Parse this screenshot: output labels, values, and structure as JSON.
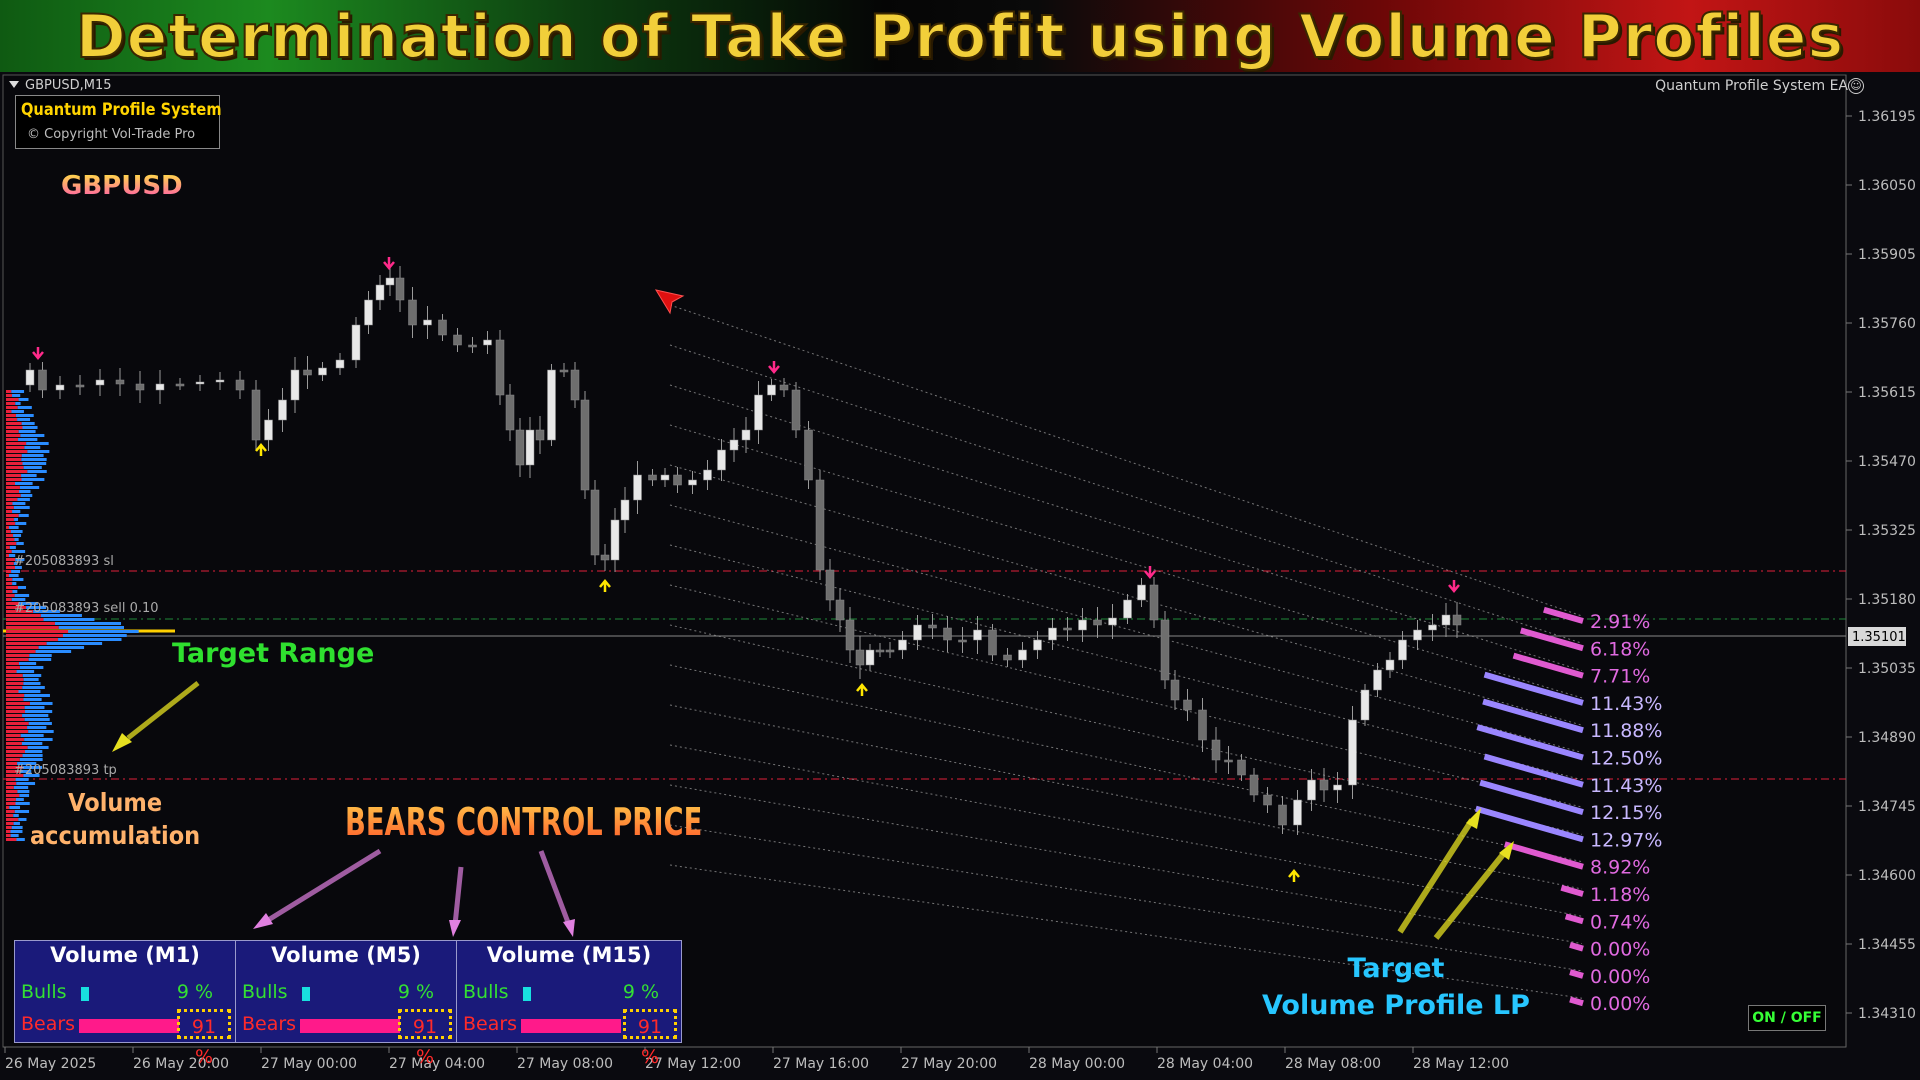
{
  "header": {
    "title": "Determination of Take Profit using Volume Profiles"
  },
  "chart_window": {
    "symbol_timeframe": "GBPUSD,M15",
    "ea_name": "Quantum Profile System EA",
    "ea_icon": "smiley-icon",
    "brand_title": "Quantum Profile System",
    "brand_copyright": "© Copyright Vol-Trade Pro",
    "symbol_big": "GBPUSD",
    "price_axis": [
      "1.36195",
      "1.36050",
      "1.35905",
      "1.35760",
      "1.35615",
      "1.35470",
      "1.35325",
      "1.35180",
      "1.35035",
      "1.34890",
      "1.34745",
      "1.34600",
      "1.34455",
      "1.34310"
    ],
    "current_price": "1.35101",
    "time_axis": [
      "26 May 2025",
      "26 May 20:00",
      "27 May 00:00",
      "27 May 04:00",
      "27 May 08:00",
      "27 May 12:00",
      "27 May 16:00",
      "27 May 20:00",
      "28 May 00:00",
      "28 May 04:00",
      "28 May 08:00",
      "28 May 12:00"
    ],
    "orders": {
      "sl": "#205083893 sl",
      "sell": "#205083893 sell 0.10",
      "tp": "#205083893 tp"
    },
    "colors": {
      "bear_line": "#e0203a",
      "sell_line": "#1f8a3a",
      "bull_arrow": "#ffe600",
      "bear_arrow": "#ff2a8a",
      "profile_bear": "#e8203a",
      "profile_bull": "#2a8cff"
    }
  },
  "annotations": {
    "target_range": "Target Range",
    "volume_accumulation_1": "Volume",
    "volume_accumulation_2": "accumulation",
    "bears_control": "BEARS CONTROL PRICE",
    "target_vp_1": "Target",
    "target_vp_2": "Volume Profile LP"
  },
  "tp_levels": [
    "2.91%",
    "6.18%",
    "7.71%",
    "11.43%",
    "11.88%",
    "12.50%",
    "11.43%",
    "12.15%",
    "12.97%",
    "8.92%",
    "1.18%",
    "0.74%",
    "0.00%",
    "0.00%",
    "0.00%"
  ],
  "tp_strength": [
    0.2929,
    0.5385,
    0.6154,
    0.9231,
    0.9385,
    1.0,
    0.9231,
    0.9692,
    1.0154,
    0.7077,
    0.1077,
    0.0615,
    0.0154,
    0.0154,
    0.0154
  ],
  "volume_panel": [
    {
      "title": "Volume (M1)",
      "bulls_label": "Bulls",
      "bulls_pct": "9 %",
      "bears_label": "Bears",
      "bears_pct": "91 %",
      "bulls": 0.09,
      "bears": 0.91
    },
    {
      "title": "Volume (M5)",
      "bulls_label": "Bulls",
      "bulls_pct": "9 %",
      "bears_label": "Bears",
      "bears_pct": "91 %",
      "bulls": 0.09,
      "bears": 0.91
    },
    {
      "title": "Volume (M15)",
      "bulls_label": "Bulls",
      "bulls_pct": "9 %",
      "bears_label": "Bears",
      "bears_pct": "91 %",
      "bulls": 0.09,
      "bears": 0.91
    }
  ],
  "on_off_button": "ON / OFF"
}
